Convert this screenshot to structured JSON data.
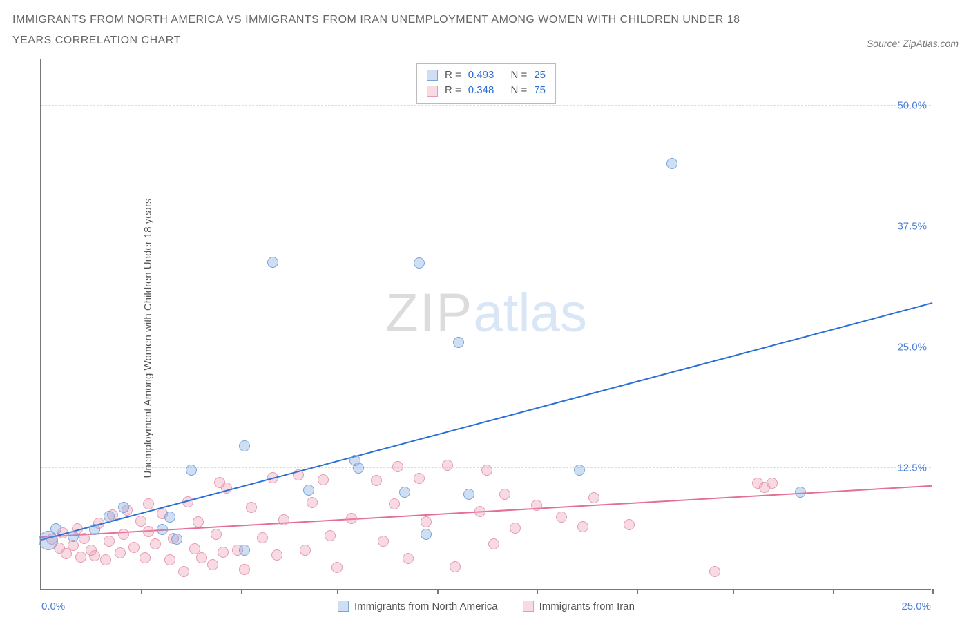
{
  "title": "IMMIGRANTS FROM NORTH AMERICA VS IMMIGRANTS FROM IRAN UNEMPLOYMENT AMONG WOMEN WITH CHILDREN UNDER 18 YEARS CORRELATION CHART",
  "source_label": "Source: ZipAtlas.com",
  "y_axis_label": "Unemployment Among Women with Children Under 18 years",
  "watermark": {
    "part1": "ZIP",
    "part2": "atlas"
  },
  "chart": {
    "type": "scatter",
    "background_color": "#ffffff",
    "grid_color": "#dddddd",
    "axis_color": "#777777",
    "xlim": [
      0,
      25
    ],
    "ylim": [
      0,
      55
    ],
    "x_tick_positions": [
      2.8,
      5.6,
      8.3,
      11.1,
      13.9,
      16.7,
      19.4,
      22.2,
      25.0
    ],
    "x_label_min": "0.0%",
    "x_label_max": "25.0%",
    "y_ticks": [
      {
        "v": 12.5,
        "label": "12.5%"
      },
      {
        "v": 25.0,
        "label": "25.0%"
      },
      {
        "v": 37.5,
        "label": "37.5%"
      },
      {
        "v": 50.0,
        "label": "50.0%"
      }
    ],
    "tick_label_color": "#4a7fd8",
    "tick_label_fontsize": 15
  },
  "series": [
    {
      "id": "na",
      "name": "Immigrants from North America",
      "fill": "rgba(120,160,220,0.35)",
      "stroke": "#7aa4d9",
      "line_color": "#2a6fd6",
      "radius": 8,
      "stats": {
        "R": "0.493",
        "N": "25"
      },
      "trendline": {
        "x1": 0,
        "y1": 5.0,
        "x2": 25,
        "y2": 29.5
      },
      "points": [
        {
          "x": 0.2,
          "y": 5.0,
          "r": 14
        },
        {
          "x": 0.4,
          "y": 6.2
        },
        {
          "x": 0.9,
          "y": 5.4
        },
        {
          "x": 1.5,
          "y": 6.1
        },
        {
          "x": 1.9,
          "y": 7.5
        },
        {
          "x": 2.3,
          "y": 8.4
        },
        {
          "x": 3.4,
          "y": 6.1
        },
        {
          "x": 3.6,
          "y": 7.4
        },
        {
          "x": 3.8,
          "y": 5.1
        },
        {
          "x": 4.2,
          "y": 12.3
        },
        {
          "x": 5.7,
          "y": 14.8
        },
        {
          "x": 5.7,
          "y": 4.0
        },
        {
          "x": 6.5,
          "y": 33.8
        },
        {
          "x": 7.5,
          "y": 10.2
        },
        {
          "x": 8.8,
          "y": 13.3
        },
        {
          "x": 8.9,
          "y": 12.5
        },
        {
          "x": 10.2,
          "y": 10.0
        },
        {
          "x": 10.6,
          "y": 33.7
        },
        {
          "x": 10.8,
          "y": 5.6
        },
        {
          "x": 11.7,
          "y": 25.5
        },
        {
          "x": 12.0,
          "y": 9.8
        },
        {
          "x": 15.1,
          "y": 12.3
        },
        {
          "x": 17.7,
          "y": 44.0
        },
        {
          "x": 21.3,
          "y": 10.0
        }
      ]
    },
    {
      "id": "iran",
      "name": "Immigrants from Iran",
      "fill": "rgba(235,150,175,0.35)",
      "stroke": "#e49cb2",
      "line_color": "#e36f95",
      "radius": 8,
      "stats": {
        "R": "0.348",
        "N": "75"
      },
      "trendline": {
        "x1": 0,
        "y1": 5.3,
        "x2": 25,
        "y2": 10.6
      },
      "points": [
        {
          "x": 0.3,
          "y": 5.1
        },
        {
          "x": 0.5,
          "y": 4.2
        },
        {
          "x": 0.6,
          "y": 5.8
        },
        {
          "x": 0.7,
          "y": 3.6
        },
        {
          "x": 0.9,
          "y": 4.5
        },
        {
          "x": 1.0,
          "y": 6.2
        },
        {
          "x": 1.1,
          "y": 3.3
        },
        {
          "x": 1.2,
          "y": 5.2
        },
        {
          "x": 1.4,
          "y": 4.0
        },
        {
          "x": 1.5,
          "y": 3.4
        },
        {
          "x": 1.6,
          "y": 6.8
        },
        {
          "x": 1.8,
          "y": 3.0
        },
        {
          "x": 1.9,
          "y": 4.9
        },
        {
          "x": 2.0,
          "y": 7.6
        },
        {
          "x": 2.2,
          "y": 3.7
        },
        {
          "x": 2.3,
          "y": 5.6
        },
        {
          "x": 2.4,
          "y": 8.1
        },
        {
          "x": 2.6,
          "y": 4.3
        },
        {
          "x": 2.8,
          "y": 7.0
        },
        {
          "x": 2.9,
          "y": 3.2
        },
        {
          "x": 3.0,
          "y": 5.9
        },
        {
          "x": 3.0,
          "y": 8.8
        },
        {
          "x": 3.2,
          "y": 4.6
        },
        {
          "x": 3.4,
          "y": 7.8
        },
        {
          "x": 3.6,
          "y": 3.0
        },
        {
          "x": 3.7,
          "y": 5.2
        },
        {
          "x": 4.0,
          "y": 1.8
        },
        {
          "x": 4.1,
          "y": 9.0
        },
        {
          "x": 4.3,
          "y": 4.1
        },
        {
          "x": 4.4,
          "y": 6.9
        },
        {
          "x": 4.5,
          "y": 3.2
        },
        {
          "x": 4.8,
          "y": 2.5
        },
        {
          "x": 4.9,
          "y": 5.6
        },
        {
          "x": 5.0,
          "y": 11.0
        },
        {
          "x": 5.1,
          "y": 3.8
        },
        {
          "x": 5.2,
          "y": 10.4
        },
        {
          "x": 5.5,
          "y": 4.0
        },
        {
          "x": 5.7,
          "y": 2.0
        },
        {
          "x": 5.9,
          "y": 8.4
        },
        {
          "x": 6.2,
          "y": 5.3
        },
        {
          "x": 6.5,
          "y": 11.5
        },
        {
          "x": 6.6,
          "y": 3.5
        },
        {
          "x": 6.8,
          "y": 7.1
        },
        {
          "x": 7.2,
          "y": 11.8
        },
        {
          "x": 7.4,
          "y": 4.0
        },
        {
          "x": 7.6,
          "y": 8.9
        },
        {
          "x": 7.9,
          "y": 11.3
        },
        {
          "x": 8.1,
          "y": 5.5
        },
        {
          "x": 8.3,
          "y": 2.2
        },
        {
          "x": 8.7,
          "y": 7.3
        },
        {
          "x": 9.4,
          "y": 11.2
        },
        {
          "x": 9.6,
          "y": 4.9
        },
        {
          "x": 9.9,
          "y": 8.8
        },
        {
          "x": 10.0,
          "y": 12.6
        },
        {
          "x": 10.3,
          "y": 3.1
        },
        {
          "x": 10.6,
          "y": 11.4
        },
        {
          "x": 10.8,
          "y": 6.9
        },
        {
          "x": 11.4,
          "y": 12.8
        },
        {
          "x": 11.6,
          "y": 2.3
        },
        {
          "x": 12.3,
          "y": 8.0
        },
        {
          "x": 12.5,
          "y": 12.3
        },
        {
          "x": 12.7,
          "y": 4.6
        },
        {
          "x": 13.0,
          "y": 9.8
        },
        {
          "x": 13.3,
          "y": 6.3
        },
        {
          "x": 13.9,
          "y": 8.6
        },
        {
          "x": 14.6,
          "y": 7.4
        },
        {
          "x": 15.2,
          "y": 6.4
        },
        {
          "x": 15.5,
          "y": 9.4
        },
        {
          "x": 16.5,
          "y": 6.6
        },
        {
          "x": 18.9,
          "y": 1.8
        },
        {
          "x": 20.1,
          "y": 10.9
        },
        {
          "x": 20.3,
          "y": 10.5
        },
        {
          "x": 20.5,
          "y": 10.9
        }
      ]
    }
  ],
  "legend": {
    "stat_R_label": "R =",
    "stat_N_label": "N ="
  }
}
